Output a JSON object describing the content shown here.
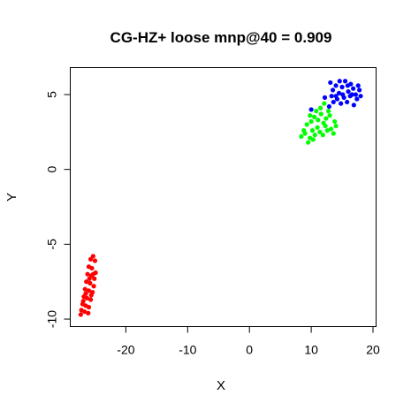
{
  "chart_data": {
    "type": "scatter",
    "title": "CG-HZ+ loose mnp@40 = 0.909",
    "xlabel": "X",
    "ylabel": "Y",
    "xlim": [
      -29,
      20.5
    ],
    "ylim": [
      -10.5,
      6.8
    ],
    "xticks": [
      -20,
      -10,
      0,
      10,
      20
    ],
    "xtick_labels": [
      "-20",
      "-10",
      "0",
      "10",
      "20"
    ],
    "yticks": [
      -10,
      -5,
      0,
      5
    ],
    "ytick_labels": [
      "-10",
      "-5",
      "0",
      "5"
    ],
    "grid": false,
    "legend": "none",
    "series": [
      {
        "color": "#ff0000",
        "points": [
          [
            -25.3,
            -5.8
          ],
          [
            -25.7,
            -6.0
          ],
          [
            -25.0,
            -6.1
          ],
          [
            -26.0,
            -6.5
          ],
          [
            -25.5,
            -6.6
          ],
          [
            -24.9,
            -6.9
          ],
          [
            -26.2,
            -7.0
          ],
          [
            -25.6,
            -7.1
          ],
          [
            -25.1,
            -7.3
          ],
          [
            -26.4,
            -7.5
          ],
          [
            -25.8,
            -7.6
          ],
          [
            -25.2,
            -7.8
          ],
          [
            -26.6,
            -8.0
          ],
          [
            -26.0,
            -8.1
          ],
          [
            -25.4,
            -8.2
          ],
          [
            -26.8,
            -8.5
          ],
          [
            -26.3,
            -8.6
          ],
          [
            -25.7,
            -8.7
          ],
          [
            -27.0,
            -9.0
          ],
          [
            -26.5,
            -9.1
          ],
          [
            -26.0,
            -9.2
          ],
          [
            -27.2,
            -9.4
          ],
          [
            -26.7,
            -9.5
          ],
          [
            -27.3,
            -9.7
          ],
          [
            -26.1,
            -9.6
          ],
          [
            -25.9,
            -7.3
          ],
          [
            -25.3,
            -7.0
          ],
          [
            -26.5,
            -8.3
          ],
          [
            -26.9,
            -8.8
          ],
          [
            -25.6,
            -8.4
          ]
        ]
      },
      {
        "color": "#00ff00",
        "points": [
          [
            8.4,
            2.2
          ],
          [
            9.0,
            2.4
          ],
          [
            9.5,
            1.8
          ],
          [
            9.8,
            2.1
          ],
          [
            10.2,
            2.6
          ],
          [
            10.6,
            2.3
          ],
          [
            11.0,
            2.8
          ],
          [
            11.4,
            2.5
          ],
          [
            9.3,
            3.0
          ],
          [
            10.0,
            3.2
          ],
          [
            10.5,
            3.5
          ],
          [
            11.1,
            3.3
          ],
          [
            11.6,
            3.7
          ],
          [
            12.0,
            3.1
          ],
          [
            12.4,
            3.4
          ],
          [
            12.8,
            3.9
          ],
          [
            13.2,
            2.7
          ],
          [
            13.6,
            2.4
          ],
          [
            14.0,
            2.9
          ],
          [
            12.6,
            2.6
          ],
          [
            10.8,
            3.9
          ],
          [
            11.5,
            4.1
          ],
          [
            12.1,
            4.4
          ],
          [
            9.8,
            3.6
          ],
          [
            8.8,
            2.6
          ],
          [
            13.0,
            3.6
          ],
          [
            13.8,
            3.2
          ],
          [
            10.3,
            2.0
          ],
          [
            11.9,
            2.3
          ],
          [
            12.3,
            2.9
          ]
        ]
      },
      {
        "color": "#0000ff",
        "points": [
          [
            13.1,
            5.8
          ],
          [
            13.5,
            5.3
          ],
          [
            14.0,
            5.6
          ],
          [
            14.5,
            5.1
          ],
          [
            15.0,
            5.5
          ],
          [
            15.5,
            5.9
          ],
          [
            16.0,
            5.2
          ],
          [
            16.4,
            5.7
          ],
          [
            16.8,
            5.4
          ],
          [
            17.2,
            5.0
          ],
          [
            17.6,
            5.6
          ],
          [
            18.0,
            4.9
          ],
          [
            14.2,
            4.7
          ],
          [
            14.8,
            4.4
          ],
          [
            15.3,
            4.8
          ],
          [
            15.8,
            4.5
          ],
          [
            16.3,
            4.9
          ],
          [
            16.9,
            4.3
          ],
          [
            17.4,
            4.7
          ],
          [
            13.6,
            4.5
          ],
          [
            12.9,
            4.2
          ],
          [
            14.6,
            5.9
          ],
          [
            15.9,
            5.6
          ],
          [
            17.8,
            5.3
          ],
          [
            13.3,
            4.9
          ],
          [
            16.6,
            5.0
          ],
          [
            15.1,
            5.0
          ],
          [
            14.0,
            4.9
          ],
          [
            10.0,
            4.0
          ],
          [
            12.2,
            4.8
          ]
        ]
      }
    ]
  }
}
